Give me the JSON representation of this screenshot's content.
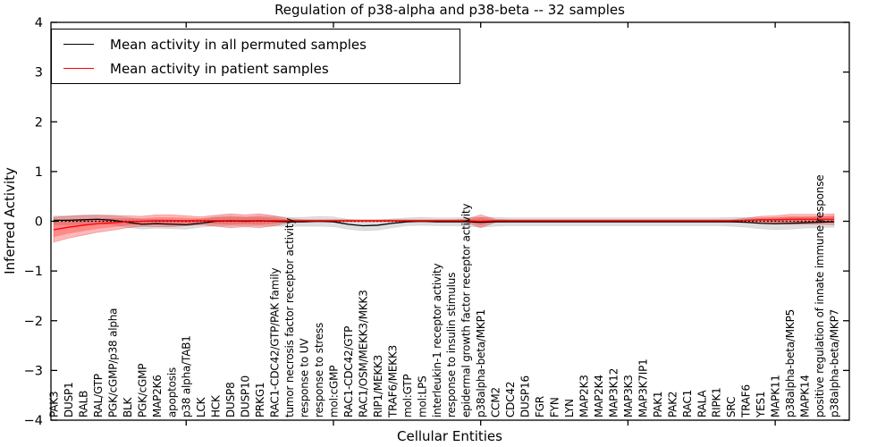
{
  "chart_data": {
    "type": "line",
    "title": "Regulation of p38-alpha and p38-beta -- 32 samples",
    "xlabel": "Cellular Entities",
    "ylabel": "Inferred Activity",
    "ylim": [
      -4,
      4
    ],
    "grid": false,
    "legend_position": "upper left",
    "zero_line_style": "dotted",
    "y_ticks": [
      {
        "v": 4,
        "label": "4"
      },
      {
        "v": 3,
        "label": "3"
      },
      {
        "v": 2,
        "label": "2"
      },
      {
        "v": 1,
        "label": "1"
      },
      {
        "v": 0,
        "label": "0"
      },
      {
        "v": -1,
        "label": "−1"
      },
      {
        "v": -2,
        "label": "−2"
      },
      {
        "v": -3,
        "label": "−3"
      },
      {
        "v": -4,
        "label": "−4"
      }
    ],
    "major_tick_indices": [
      9,
      19,
      29,
      39,
      49
    ],
    "categories": [
      "PAK3",
      "DUSP1",
      "RALB",
      "RAL/GTP",
      "PGK/cGMP/p38 alpha",
      "BLK",
      "PGK/cGMP",
      "MAP2K6",
      "apoptosis",
      "p38 alpha/TAB1",
      "LCK",
      "HCK",
      "DUSP8",
      "DUSP10",
      "PRKG1",
      "RAC1-CDC42/GTP/PAK family",
      "tumor necrosis factor receptor activity",
      "response to UV",
      "response to stress",
      "mol:cGMP",
      "RAC1-CDC42/GTP",
      "RAC1/OSM/MEKK3/MKK3",
      "RIP1/MEKK3",
      "TRAF6/MEKK3",
      "mol:GTP",
      "mol:LPS",
      "interleukin-1 receptor activity",
      "response to insulin stimulus",
      "epidermal growth factor receptor activity",
      "p38alpha-beta/MKP1",
      "CCM2",
      "CDC42",
      "DUSP16",
      "FGR",
      "FYN",
      "LYN",
      "MAP2K3",
      "MAP2K4",
      "MAP3K12",
      "MAP3K3",
      "MAP3K7IP1",
      "PAK1",
      "PAK2",
      "RAC1",
      "RALA",
      "RIPK1",
      "SRC",
      "TRAF6",
      "YES1",
      "MAPK11",
      "p38alpha-beta/MKP5",
      "MAPK14",
      "positive regulation of innate immune response",
      "p38alpha-beta/MKP7"
    ],
    "series": [
      {
        "name": "Mean activity in all permuted samples",
        "color": "#000000",
        "band_color": "rgba(0,0,0,0.13)",
        "mean": [
          0.02,
          0.02,
          0.03,
          0.04,
          0.02,
          -0.02,
          -0.06,
          -0.05,
          -0.06,
          -0.07,
          -0.04,
          0.0,
          0.01,
          0.0,
          0.01,
          0.0,
          -0.01,
          -0.01,
          0.0,
          -0.01,
          -0.06,
          -0.09,
          -0.08,
          -0.04,
          -0.01,
          0.0,
          -0.01,
          -0.01,
          -0.01,
          -0.02,
          -0.01,
          -0.01,
          -0.01,
          -0.01,
          -0.01,
          -0.01,
          -0.01,
          -0.01,
          -0.01,
          -0.01,
          -0.01,
          -0.01,
          -0.01,
          -0.01,
          -0.01,
          -0.01,
          -0.01,
          -0.02,
          -0.04,
          -0.05,
          -0.04,
          -0.03,
          -0.02,
          -0.01
        ],
        "band": [
          0.09,
          0.09,
          0.09,
          0.09,
          0.09,
          0.1,
          0.1,
          0.09,
          0.09,
          0.09,
          0.08,
          0.09,
          0.1,
          0.09,
          0.1,
          0.1,
          0.09,
          0.09,
          0.1,
          0.1,
          0.1,
          0.1,
          0.1,
          0.09,
          0.08,
          0.08,
          0.08,
          0.08,
          0.09,
          0.1,
          0.09,
          0.08,
          0.08,
          0.08,
          0.08,
          0.08,
          0.08,
          0.08,
          0.08,
          0.08,
          0.08,
          0.08,
          0.08,
          0.08,
          0.08,
          0.08,
          0.09,
          0.1,
          0.11,
          0.12,
          0.12,
          0.11,
          0.11,
          0.11
        ]
      },
      {
        "name": "Mean activity in patient samples",
        "color": "#ff0000",
        "band_color": "rgba(255,0,0,0.28)",
        "band_inner_color": "rgba(255,0,0,0.25)",
        "mean": [
          -0.17,
          -0.12,
          -0.08,
          -0.05,
          -0.03,
          -0.01,
          0.0,
          0.01,
          0.01,
          0.01,
          0.01,
          0.01,
          0.01,
          0.01,
          0.01,
          0.01,
          0.01,
          0.01,
          0.01,
          0.01,
          0.01,
          0.01,
          0.01,
          0.01,
          0.01,
          0.01,
          0.01,
          0.01,
          0.01,
          0.0,
          0.01,
          0.01,
          0.01,
          0.01,
          0.01,
          0.01,
          0.01,
          0.01,
          0.01,
          0.01,
          0.01,
          0.01,
          0.01,
          0.01,
          0.01,
          0.01,
          0.01,
          0.02,
          0.03,
          0.03,
          0.04,
          0.04,
          0.04,
          0.04
        ],
        "band": [
          0.25,
          0.22,
          0.2,
          0.17,
          0.15,
          0.12,
          0.1,
          0.12,
          0.12,
          0.1,
          0.08,
          0.11,
          0.14,
          0.12,
          0.14,
          0.1,
          0.04,
          0.02,
          0.02,
          0.02,
          0.02,
          0.02,
          0.02,
          0.02,
          0.02,
          0.02,
          0.02,
          0.02,
          0.03,
          0.13,
          0.03,
          0.02,
          0.02,
          0.02,
          0.02,
          0.02,
          0.02,
          0.02,
          0.02,
          0.02,
          0.02,
          0.02,
          0.02,
          0.02,
          0.02,
          0.02,
          0.02,
          0.04,
          0.07,
          0.08,
          0.1,
          0.1,
          0.1,
          0.11
        ],
        "band_inner": [
          0.15,
          0.13,
          0.12,
          0.1,
          0.09,
          0.07,
          0.06,
          0.07,
          0.07,
          0.06,
          0.05,
          0.07,
          0.08,
          0.07,
          0.08,
          0.06,
          0.02,
          0.01,
          0.01,
          0.01,
          0.01,
          0.01,
          0.01,
          0.01,
          0.01,
          0.01,
          0.01,
          0.01,
          0.02,
          0.08,
          0.02,
          0.01,
          0.01,
          0.01,
          0.01,
          0.01,
          0.01,
          0.01,
          0.01,
          0.01,
          0.01,
          0.01,
          0.01,
          0.01,
          0.01,
          0.01,
          0.01,
          0.02,
          0.04,
          0.05,
          0.06,
          0.06,
          0.06,
          0.07
        ]
      }
    ]
  }
}
